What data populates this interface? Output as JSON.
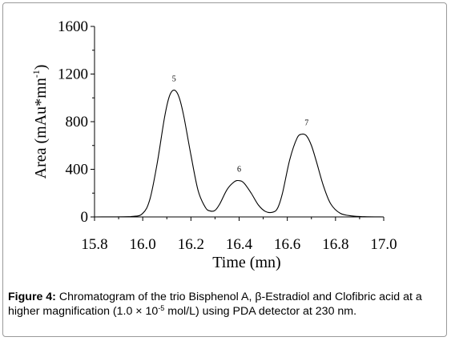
{
  "chart_data": {
    "type": "line",
    "xlabel": "Time (mn)",
    "ylabel_main": "Area (mAu*mn",
    "ylabel_sup": "-1",
    "ylabel_end": ")",
    "xlim": [
      15.8,
      17.0
    ],
    "ylim": [
      0,
      1600
    ],
    "x_ticks": [
      15.8,
      16.0,
      16.2,
      16.4,
      16.6,
      16.8,
      17.0
    ],
    "x_tick_labels": [
      "15.8",
      "16.0",
      "16.2",
      "16.4",
      "16.6",
      "16.8",
      "17.0"
    ],
    "y_ticks": [
      0,
      400,
      800,
      1200,
      1600
    ],
    "y_tick_labels": [
      "0",
      "400",
      "800",
      "1200",
      "1600"
    ],
    "grid": false,
    "series": [
      {
        "x": [
          15.8,
          15.95,
          16.0,
          16.03,
          16.06,
          16.09,
          16.11,
          16.13,
          16.15,
          16.17,
          16.2,
          16.23,
          16.26,
          16.28,
          16.3,
          16.32,
          16.35,
          16.38,
          16.4,
          16.42,
          16.45,
          16.48,
          16.51,
          16.54,
          16.56,
          16.58,
          16.61,
          16.64,
          16.66,
          16.68,
          16.7,
          16.72,
          16.75,
          16.78,
          16.82,
          16.87,
          16.92,
          17.0
        ],
        "values": [
          0,
          3,
          30,
          150,
          450,
          830,
          1010,
          1065,
          1010,
          850,
          520,
          220,
          80,
          50,
          55,
          110,
          230,
          295,
          305,
          285,
          200,
          100,
          45,
          40,
          75,
          200,
          480,
          660,
          695,
          680,
          600,
          470,
          260,
          110,
          30,
          8,
          2,
          0
        ]
      }
    ],
    "peaks": [
      {
        "label": "5",
        "x": 16.13,
        "y": 1065
      },
      {
        "label": "6",
        "x": 16.4,
        "y": 305
      },
      {
        "label": "7",
        "x": 16.68,
        "y": 695
      }
    ]
  },
  "caption": {
    "figure_label": "Figure 4:",
    "text_part1": " Chromatogram of the trio Bisphenol A, β-Estradiol and Clofibric acid at a higher magnification (1.0 × 10",
    "exponent": "-5",
    "text_part2": " mol/L) using PDA detector at 230 nm."
  }
}
